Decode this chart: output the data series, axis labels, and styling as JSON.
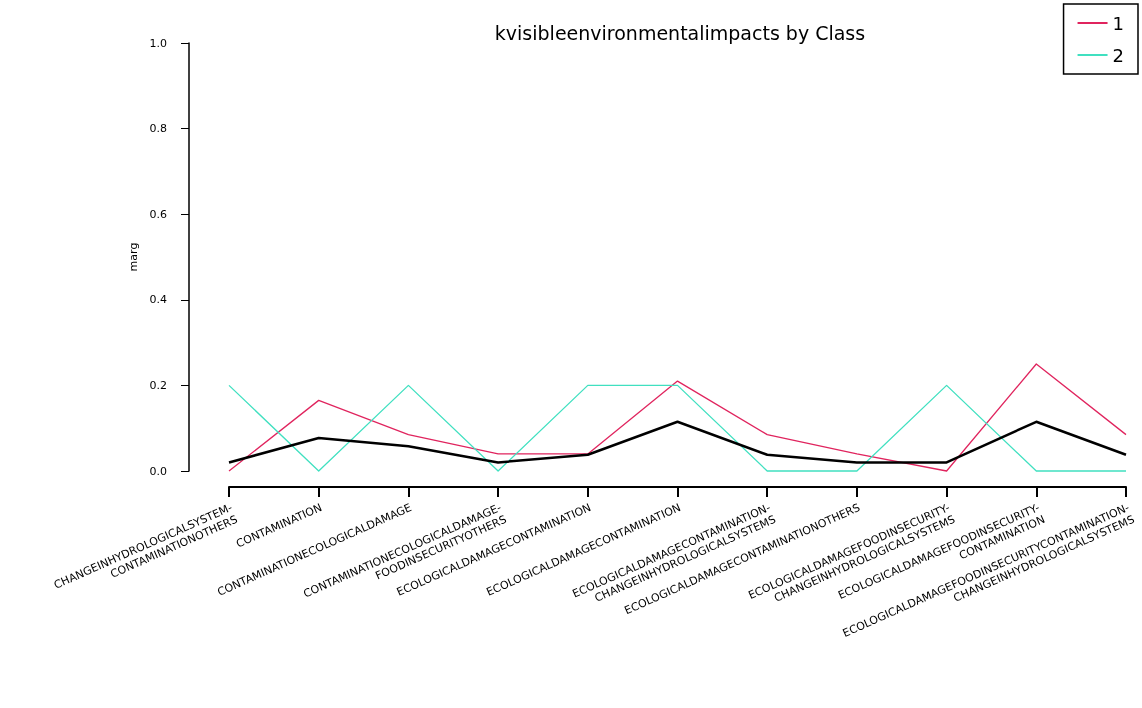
{
  "chart_data": {
    "type": "line",
    "title": "kvisibleenvironmentalimpacts by Class",
    "ylabel": "marg",
    "categories": [
      "CHANGEINHYDROLOGICALSYSTEM-\nCONTAMINATIONOTHERS",
      "CONTAMINATION",
      "CONTAMINATIONECOLOGICALDAMAGE",
      "CONTAMINATIONECOLOGICALDAMAGE-\nFOODINSECURITYOTHERS",
      "ECOLOGICALDAMAGECONTAMINATION",
      "ECOLOGICALDAMAGECONTAMINATION",
      "ECOLOGICALDAMAGECONTAMINATION-\nCHANGEINHYDROLOGICALSYSTEMS",
      "ECOLOGICALDAMAGECONTAMINATIONOTHERS",
      "ECOLOGICALDAMAGEFOODINSECURITY-\nCHANGEINHYDROLOGICALSYSTEMS",
      "ECOLOGICALDAMAGEFOODINSECURITY-\nCONTAMINATION",
      "ECOLOGICALDAMAGEFOODINSECURITYCONTAMINATION-\nCHANGEINHYDROLOGICALSYSTEMS"
    ],
    "series": [
      {
        "name": "1",
        "color": "#e0245e",
        "values": [
          0,
          0.165,
          0.085,
          0.04,
          0.04,
          0.21,
          0.085,
          0.04,
          0,
          0.25,
          0.085
        ]
      },
      {
        "name": "2",
        "color": "#40e0c0",
        "values": [
          0.2,
          0,
          0.2,
          0,
          0.2,
          0.2,
          0,
          0,
          0.2,
          0,
          0
        ]
      },
      {
        "color": "#000000",
        "values": [
          0.02,
          0.077,
          0.058,
          0.02,
          0.038,
          0.115,
          0.038,
          0.02,
          0.02,
          0.115,
          0.038
        ]
      }
    ],
    "ylim": [
      0,
      1
    ],
    "yticks": [
      {
        "value": 0,
        "label": "0.0"
      },
      {
        "value": 0.2,
        "label": "0.2"
      },
      {
        "value": 0.4,
        "label": "0.4"
      },
      {
        "value": 0.6,
        "label": "0.6"
      },
      {
        "value": 0.8,
        "label": "0.8"
      },
      {
        "value": 1,
        "label": "1.0"
      }
    ],
    "grid": false,
    "legend": "top right",
    "marker": "none",
    "line_style": "solid"
  }
}
